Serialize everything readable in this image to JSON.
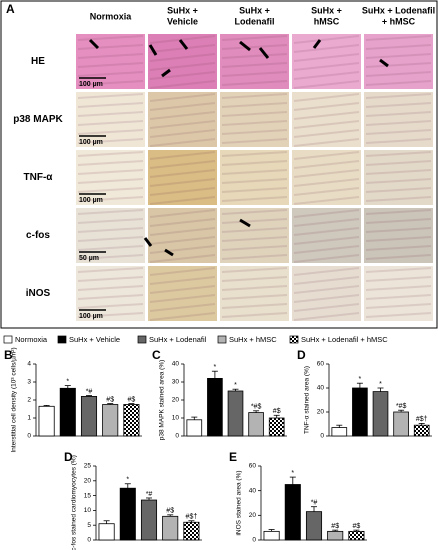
{
  "panel_a": {
    "label": "A",
    "columns": [
      [
        "Normoxia"
      ],
      [
        "SuHx +",
        "Vehicle"
      ],
      [
        "SuHx +",
        "Lodenafil"
      ],
      [
        "SuHx +",
        "hMSC"
      ],
      [
        "SuHx + Lodenafil",
        "+ hMSC"
      ]
    ],
    "rows": [
      "HE",
      "p38 MAPK",
      "TNF-α",
      "c-fos",
      "iNOS"
    ],
    "scale_bars": [
      "100 µm",
      "100 µm",
      "100 µm",
      "50 µm",
      "100 µm"
    ]
  },
  "legend": {
    "names": [
      "Normoxia",
      "SuHx + Vehicle",
      "SuHx + Lodenafil",
      "SuHx + hMSC",
      "SuHx + Lodenafil + hMSC"
    ],
    "fills": [
      "#ffffff",
      "#000000",
      "#666666",
      "#b3b3b3",
      "checker"
    ]
  },
  "chart_data": [
    {
      "type": "bar",
      "label": "B",
      "ylabel": "Interstitial cell density (10³ cells/µm²)",
      "values": [
        1.65,
        2.65,
        2.2,
        1.75,
        1.75
      ],
      "errors": [
        0.05,
        0.15,
        0.05,
        0.05,
        0.05
      ],
      "annotations": [
        null,
        "*",
        "*#",
        "#$",
        "#$"
      ],
      "ylim": [
        0,
        4
      ],
      "yticks": [
        0,
        1,
        2,
        3,
        4
      ]
    },
    {
      "type": "bar",
      "label": "C",
      "ylabel": "p38 MAPK stained area (%)",
      "values": [
        9,
        32,
        25,
        13,
        10
      ],
      "errors": [
        1.5,
        4,
        1,
        1,
        1.5
      ],
      "annotations": [
        null,
        "*",
        "*",
        "*#$",
        "#$"
      ],
      "ylim": [
        0,
        40
      ],
      "yticks": [
        0,
        10,
        20,
        30,
        40
      ]
    },
    {
      "type": "bar",
      "label": "D",
      "ylabel": "TNF-α stained area (%)",
      "values": [
        7,
        40,
        37,
        20,
        9
      ],
      "errors": [
        2,
        4,
        3,
        1.5,
        1.5
      ],
      "annotations": [
        null,
        "*",
        "*",
        "*#$",
        "#$†"
      ],
      "ylim": [
        0,
        60
      ],
      "yticks": [
        0,
        20,
        40,
        60
      ]
    },
    {
      "type": "bar",
      "label": "D",
      "ylabel": "c-fos stained cardiomyocytes (%)",
      "values": [
        5.5,
        17.5,
        13.5,
        8,
        6
      ],
      "errors": [
        1,
        1.5,
        0.7,
        0.5,
        0.5
      ],
      "annotations": [
        null,
        "*",
        "*#",
        "#$",
        "#$†"
      ],
      "ylim": [
        0,
        25
      ],
      "yticks": [
        0,
        5,
        10,
        15,
        20,
        25
      ]
    },
    {
      "type": "bar",
      "label": "E",
      "ylabel": "iNOS stained area (%)",
      "values": [
        7,
        45,
        23,
        7,
        7
      ],
      "errors": [
        1.5,
        6,
        4,
        1,
        1
      ],
      "annotations": [
        null,
        "*",
        "*#",
        "#$",
        "#$"
      ],
      "ylim": [
        0,
        60
      ],
      "yticks": [
        0,
        20,
        40,
        60
      ]
    }
  ]
}
